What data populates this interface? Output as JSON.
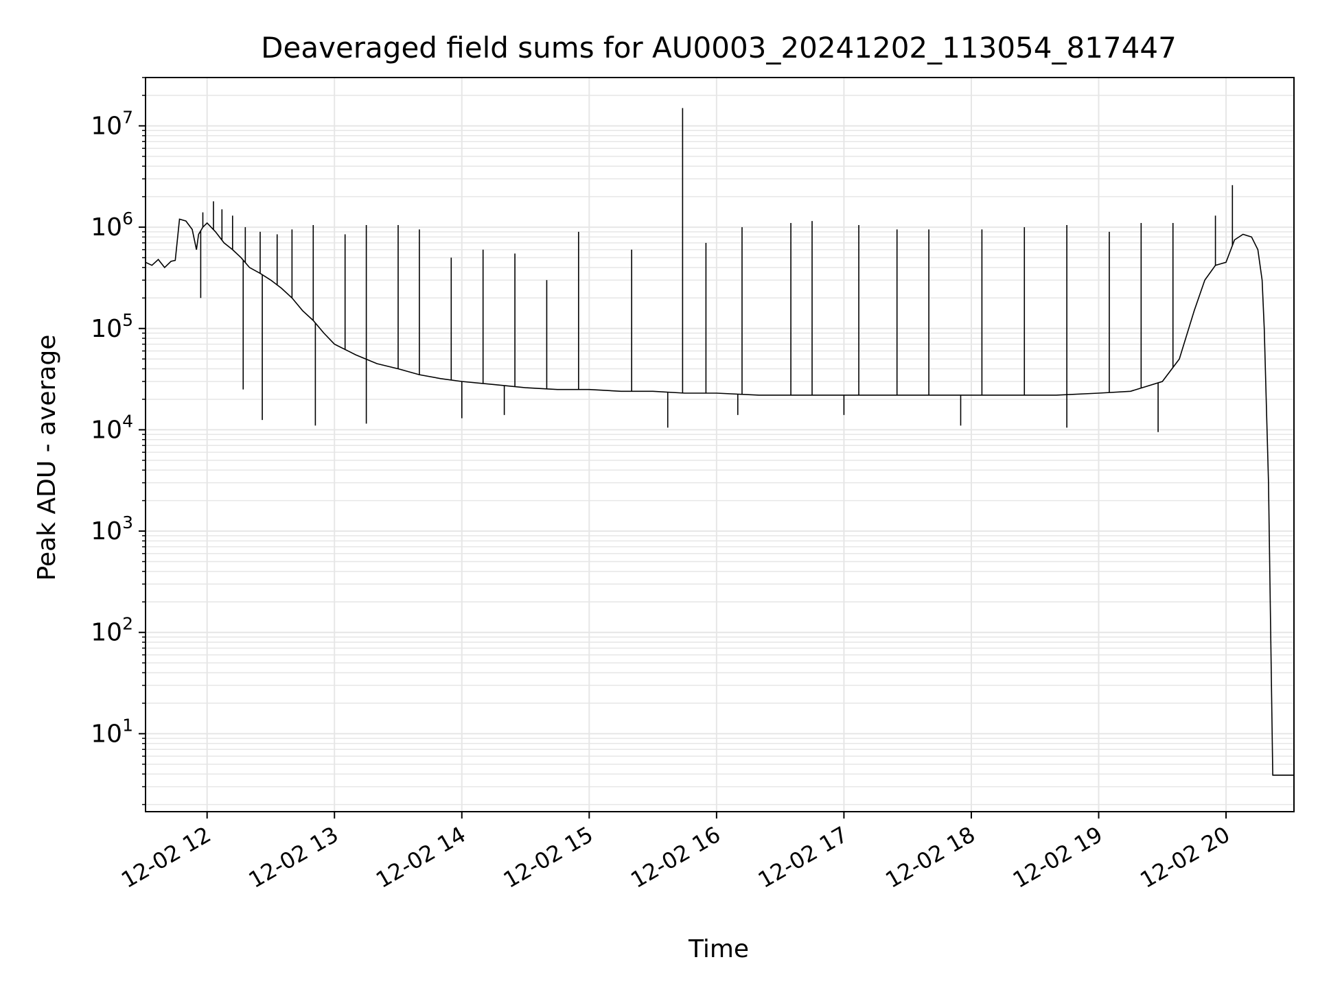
{
  "chart_data": {
    "type": "line",
    "title": "Deaveraged field sums for AU0003_20241202_113054_817447",
    "xlabel": "Time",
    "ylabel": "Peak ADU - average",
    "yscale": "log",
    "ylim": [
      1.7,
      30000000
    ],
    "xlim": [
      "2024-12-02 11:31",
      "2024-12-02 20:32"
    ],
    "grid": "major and minor",
    "line_color": "#000000",
    "grid_color": "#e6e6e6",
    "x_ticks": [
      {
        "value": "2024-12-02 12:00",
        "label": "12-02 12"
      },
      {
        "value": "2024-12-02 13:00",
        "label": "12-02 13"
      },
      {
        "value": "2024-12-02 14:00",
        "label": "12-02 14"
      },
      {
        "value": "2024-12-02 15:00",
        "label": "12-02 15"
      },
      {
        "value": "2024-12-02 16:00",
        "label": "12-02 16"
      },
      {
        "value": "2024-12-02 17:00",
        "label": "12-02 17"
      },
      {
        "value": "2024-12-02 18:00",
        "label": "12-02 18"
      },
      {
        "value": "2024-12-02 19:00",
        "label": "12-02 19"
      },
      {
        "value": "2024-12-02 20:00",
        "label": "12-02 20"
      }
    ],
    "y_ticks": [
      {
        "value": 10,
        "base": "10",
        "exp": "1"
      },
      {
        "value": 100,
        "base": "10",
        "exp": "2"
      },
      {
        "value": 1000,
        "base": "10",
        "exp": "3"
      },
      {
        "value": 10000,
        "base": "10",
        "exp": "4"
      },
      {
        "value": 100000,
        "base": "10",
        "exp": "5"
      },
      {
        "value": 1000000,
        "base": "10",
        "exp": "6"
      },
      {
        "value": 10000000,
        "base": "10",
        "exp": "7"
      }
    ],
    "series": [
      {
        "x": [
          "2024-12-02 11:31",
          "2024-12-02 11:34",
          "2024-12-02 11:37",
          "2024-12-02 11:40",
          "2024-12-02 11:43",
          "2024-12-02 11:45",
          "2024-12-02 11:47",
          "2024-12-02 11:50",
          "2024-12-02 11:53",
          "2024-12-02 11:55",
          "2024-12-02 11:56",
          "2024-12-02 11:58",
          "2024-12-02 12:00",
          "2024-12-02 12:04",
          "2024-12-02 12:08",
          "2024-12-02 12:12",
          "2024-12-02 12:16",
          "2024-12-02 12:20",
          "2024-12-02 12:25",
          "2024-12-02 12:30",
          "2024-12-02 12:35",
          "2024-12-02 12:40",
          "2024-12-02 12:45",
          "2024-12-02 12:50",
          "2024-12-02 12:55",
          "2024-12-02 13:00",
          "2024-12-02 13:10",
          "2024-12-02 13:20",
          "2024-12-02 13:30",
          "2024-12-02 13:40",
          "2024-12-02 13:50",
          "2024-12-02 14:00",
          "2024-12-02 14:15",
          "2024-12-02 14:30",
          "2024-12-02 14:45",
          "2024-12-02 15:00",
          "2024-12-02 15:15",
          "2024-12-02 15:30",
          "2024-12-02 15:45",
          "2024-12-02 16:00",
          "2024-12-02 16:20",
          "2024-12-02 16:40",
          "2024-12-02 17:00",
          "2024-12-02 17:20",
          "2024-12-02 17:40",
          "2024-12-02 18:00",
          "2024-12-02 18:20",
          "2024-12-02 18:40",
          "2024-12-02 19:00",
          "2024-12-02 19:15",
          "2024-12-02 19:30",
          "2024-12-02 19:38",
          "2024-12-02 19:45",
          "2024-12-02 19:50",
          "2024-12-02 19:55",
          "2024-12-02 20:00",
          "2024-12-02 20:04",
          "2024-12-02 20:08",
          "2024-12-02 20:12",
          "2024-12-02 20:15",
          "2024-12-02 20:17",
          "2024-12-02 20:18",
          "2024-12-02 20:20",
          "2024-12-02 20:22",
          "2024-12-02 20:26",
          "2024-12-02 20:32"
        ],
        "values": [
          450000,
          420000,
          480000,
          400000,
          460000,
          470000,
          1200000,
          1150000,
          950000,
          600000,
          850000,
          1000000,
          1100000,
          900000,
          700000,
          600000,
          500000,
          400000,
          350000,
          300000,
          250000,
          200000,
          150000,
          120000,
          90000,
          70000,
          55000,
          45000,
          40000,
          35000,
          32000,
          30000,
          28000,
          26000,
          25000,
          25000,
          24000,
          24000,
          23000,
          23000,
          22000,
          22000,
          22000,
          22000,
          22000,
          22000,
          22000,
          22000,
          23000,
          24000,
          30000,
          50000,
          150000,
          300000,
          420000,
          450000,
          750000,
          850000,
          800000,
          600000,
          300000,
          100000,
          3000,
          3.9,
          3.9,
          3.9
        ]
      }
    ],
    "spikes": [
      {
        "x": "2024-12-02 11:58",
        "value": 1400000
      },
      {
        "x": "2024-12-02 12:03",
        "value": 1800000
      },
      {
        "x": "2024-12-02 12:07",
        "value": 1500000
      },
      {
        "x": "2024-12-02 12:12",
        "value": 1300000
      },
      {
        "x": "2024-12-02 12:18",
        "value": 1000000
      },
      {
        "x": "2024-12-02 12:25",
        "value": 900000
      },
      {
        "x": "2024-12-02 12:33",
        "value": 850000
      },
      {
        "x": "2024-12-02 12:40",
        "value": 950000
      },
      {
        "x": "2024-12-02 12:50",
        "value": 1050000
      },
      {
        "x": "2024-12-02 13:05",
        "value": 850000
      },
      {
        "x": "2024-12-02 13:15",
        "value": 1050000
      },
      {
        "x": "2024-12-02 13:30",
        "value": 1050000
      },
      {
        "x": "2024-12-02 13:40",
        "value": 950000
      },
      {
        "x": "2024-12-02 13:55",
        "value": 500000
      },
      {
        "x": "2024-12-02 14:10",
        "value": 600000
      },
      {
        "x": "2024-12-02 14:25",
        "value": 550000
      },
      {
        "x": "2024-12-02 14:40",
        "value": 300000
      },
      {
        "x": "2024-12-02 14:55",
        "value": 900000
      },
      {
        "x": "2024-12-02 15:20",
        "value": 600000
      },
      {
        "x": "2024-12-02 15:44",
        "value": 15000000
      },
      {
        "x": "2024-12-02 15:55",
        "value": 700000
      },
      {
        "x": "2024-12-02 16:12",
        "value": 1000000
      },
      {
        "x": "2024-12-02 16:35",
        "value": 1100000
      },
      {
        "x": "2024-12-02 16:45",
        "value": 1150000
      },
      {
        "x": "2024-12-02 17:07",
        "value": 1050000
      },
      {
        "x": "2024-12-02 17:25",
        "value": 950000
      },
      {
        "x": "2024-12-02 17:40",
        "value": 950000
      },
      {
        "x": "2024-12-02 18:05",
        "value": 950000
      },
      {
        "x": "2024-12-02 18:25",
        "value": 1000000
      },
      {
        "x": "2024-12-02 18:45",
        "value": 1050000
      },
      {
        "x": "2024-12-02 19:05",
        "value": 900000
      },
      {
        "x": "2024-12-02 19:20",
        "value": 1100000
      },
      {
        "x": "2024-12-02 19:35",
        "value": 1100000
      },
      {
        "x": "2024-12-02 19:55",
        "value": 1300000
      },
      {
        "x": "2024-12-02 20:03",
        "value": 2600000
      }
    ],
    "dips": [
      {
        "x": "2024-12-02 11:57",
        "value": 200000
      },
      {
        "x": "2024-12-02 12:17",
        "value": 25000
      },
      {
        "x": "2024-12-02 12:26",
        "value": 12500
      },
      {
        "x": "2024-12-02 12:51",
        "value": 11000
      },
      {
        "x": "2024-12-02 13:15",
        "value": 11500
      },
      {
        "x": "2024-12-02 14:00",
        "value": 13000
      },
      {
        "x": "2024-12-02 14:20",
        "value": 14000
      },
      {
        "x": "2024-12-02 15:37",
        "value": 10500
      },
      {
        "x": "2024-12-02 16:10",
        "value": 14000
      },
      {
        "x": "2024-12-02 17:00",
        "value": 14000
      },
      {
        "x": "2024-12-02 17:55",
        "value": 11000
      },
      {
        "x": "2024-12-02 18:45",
        "value": 10500
      },
      {
        "x": "2024-12-02 19:28",
        "value": 9500
      }
    ]
  }
}
